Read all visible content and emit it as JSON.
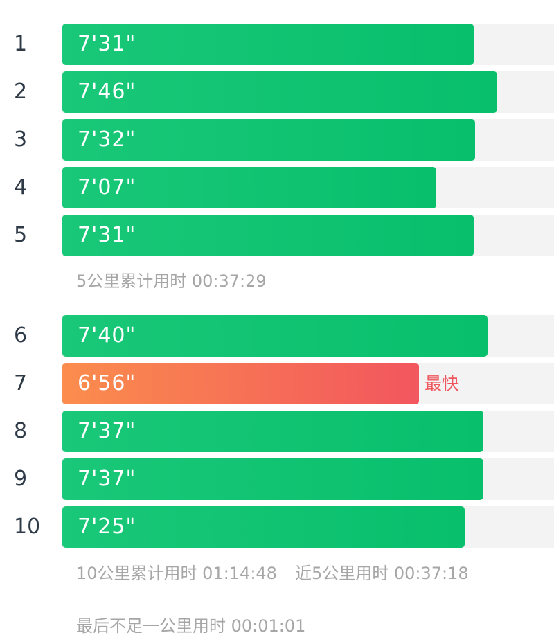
{
  "splits": [
    {
      "km": "1",
      "pace": "7'31\"",
      "fastest": false
    },
    {
      "km": "2",
      "pace": "7'46\"",
      "fastest": false
    },
    {
      "km": "3",
      "pace": "7'32\"",
      "fastest": false
    },
    {
      "km": "4",
      "pace": "7'07\"",
      "fastest": false
    },
    {
      "km": "5",
      "pace": "7'31\"",
      "fastest": false
    },
    {
      "km": "6",
      "pace": "7'40\"",
      "fastest": false
    },
    {
      "km": "7",
      "pace": "6'56\"",
      "fastest": true
    },
    {
      "km": "8",
      "pace": "7'37\"",
      "fastest": false
    },
    {
      "km": "9",
      "pace": "7'37\"",
      "fastest": false
    },
    {
      "km": "10",
      "pace": "7'25\"",
      "fastest": false
    }
  ],
  "fastest_label": "最快",
  "summary_5km": "5公里累计用时 00:37:29",
  "summary_10km": "10公里累计用时 01:14:48",
  "summary_last5": "近5公里用时 00:37:18",
  "summary_remainder": "最后不足一公里用时 00:01:01",
  "colors": {
    "bar_green_start": "#19c878",
    "bar_green_end": "#08bf6c",
    "bar_fastest_start": "#fb8d4d",
    "bar_fastest_end": "#f2565e",
    "track": "#f3f3f3",
    "fastest_label": "#f0565d",
    "summary_text": "#a6a6a6"
  }
}
